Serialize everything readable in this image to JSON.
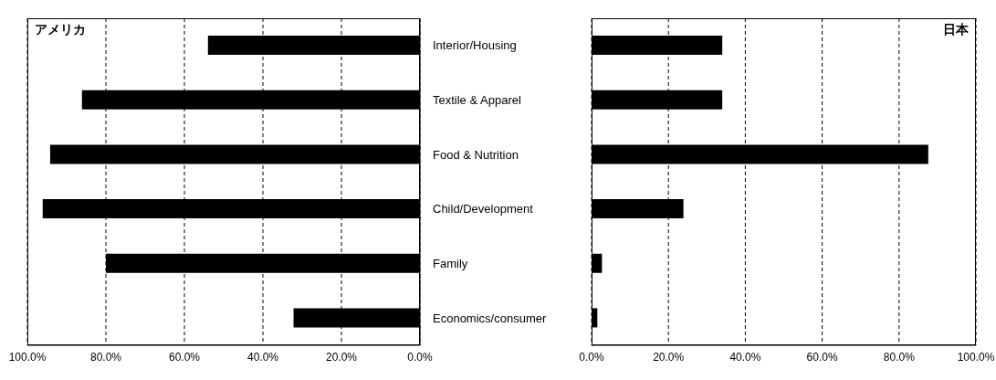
{
  "chart_data": [
    {
      "type": "bar",
      "orientation": "horizontal",
      "title": "アメリカ",
      "categories": [
        "Interior/Housing",
        "Textile & Apparel",
        "Food & Nutrition",
        "Child/Development",
        "Family",
        "Economics/consumer"
      ],
      "series": [
        {
          "color": "#000000",
          "values": [
            54.0,
            86.1,
            94.2,
            96.1,
            80.0,
            32.2
          ]
        }
      ],
      "xlim": [
        100,
        0
      ],
      "xticks": [
        {
          "value": 100,
          "label": "100.0%"
        },
        {
          "value": 80,
          "label": "80.0%"
        },
        {
          "value": 60,
          "label": "60.0%"
        },
        {
          "value": 40,
          "label": "40.0%"
        },
        {
          "value": 20,
          "label": "20.0%"
        },
        {
          "value": 0,
          "label": "0.0%"
        }
      ],
      "grid": "x"
    },
    {
      "type": "bar",
      "orientation": "horizontal",
      "title": "日本",
      "categories": [
        null,
        null,
        null,
        null,
        null,
        null
      ],
      "series": [
        {
          "color": "#000000",
          "values": [
            34.0,
            34.0,
            87.6,
            23.9,
            2.7,
            1.5
          ]
        }
      ],
      "xlim": [
        0,
        100
      ],
      "xticks": [
        {
          "value": 0,
          "label": "0.0%"
        },
        {
          "value": 20,
          "label": "20.0%"
        },
        {
          "value": 40,
          "label": "40.0%"
        },
        {
          "value": 60,
          "label": "60.0%"
        },
        {
          "value": 80,
          "label": "80.0%"
        },
        {
          "value": 100,
          "label": "100.0%"
        }
      ],
      "grid": "x",
      "tick_labels": "x"
    }
  ]
}
